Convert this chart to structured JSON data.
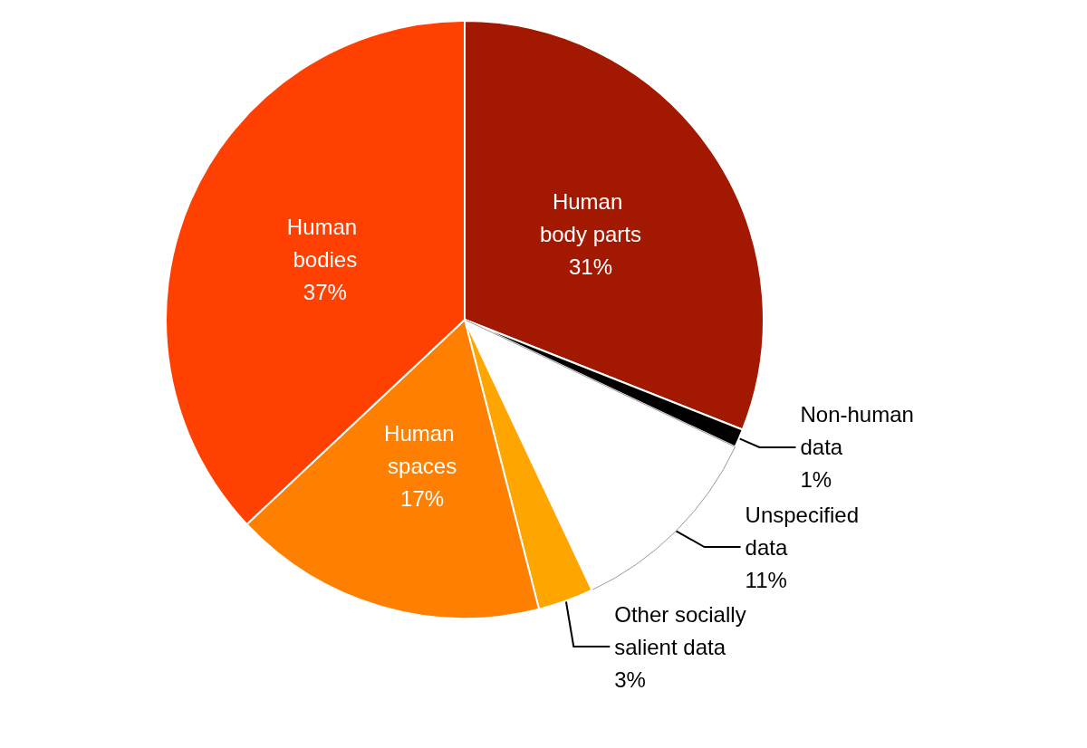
{
  "chart_data": {
    "type": "pie",
    "categories": [
      "Human body parts",
      "Non-human data",
      "Unspecified data",
      "Other socially salient data",
      "Human spaces",
      "Human bodies"
    ],
    "values": [
      31,
      1,
      11,
      3,
      17,
      37
    ],
    "value_labels": [
      "31%",
      "1%",
      "11%",
      "3%",
      "17%",
      "37%"
    ],
    "colors": [
      "#a31800",
      "#000000",
      "#ffffff",
      "#ffa500",
      "#ff7f00",
      "#ff4000"
    ],
    "legend": false
  }
}
